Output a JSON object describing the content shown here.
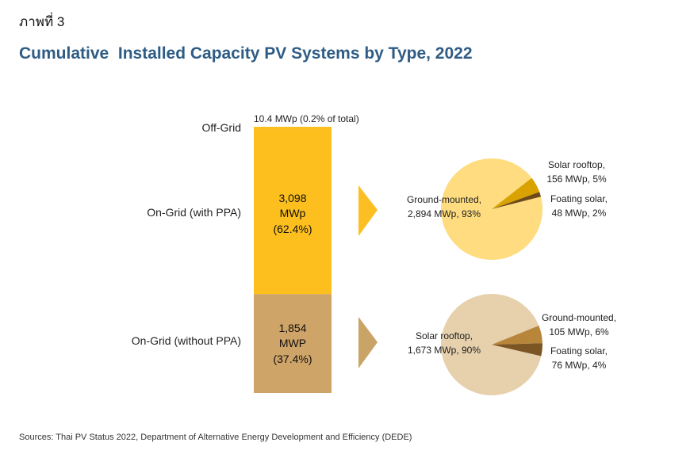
{
  "header": {
    "figure_label": "ภาพที่ 3",
    "title": "Cumulative  Installed Capacity PV Systems by Type, 2022"
  },
  "footer": {
    "sources": "Sources: Thai PV Status 2022, Department of Alternative Energy Development and Efficiency (DEDE)"
  },
  "colors": {
    "title": "#2e5c85",
    "offgrid": "#fbbf24",
    "ppa_bar": "#fcbf1e",
    "noppa_bar": "#cfa468",
    "ppa_arrow": "#fbbf24",
    "noppa_arrow": "#c9a466",
    "ppa_pie_main": "#fedc7f",
    "ppa_pie_rooftop": "#d9a200",
    "ppa_pie_floating": "#6e4a1a",
    "noppa_pie_main": "#e7d0ac",
    "noppa_pie_ground": "#b8863a",
    "noppa_pie_floating": "#7b5524"
  },
  "chart_data": [
    {
      "type": "bar",
      "title": "Cumulative  Installed Capacity PV Systems by Type, 2022",
      "stacked": true,
      "unit": "MWp",
      "categories": [
        "Off-Grid",
        "On-Grid (with PPA)",
        "On-Grid (without PPA)"
      ],
      "values": [
        10.4,
        3098,
        1854
      ],
      "shares_percent": [
        0.2,
        62.4,
        37.4
      ],
      "data_labels": [
        "10.4 MWp  (0.2% of total)",
        [
          "3,098",
          "MWp",
          "(62.4%)"
        ],
        [
          "1,854",
          "MWP",
          "(37.4%)"
        ]
      ]
    },
    {
      "type": "pie",
      "title": "On-Grid (with PPA)",
      "slices": [
        {
          "name": "Ground-mounted",
          "value": 2894,
          "percent": 93,
          "label": [
            "Ground-mounted,",
            "2,894 MWp, 93%"
          ]
        },
        {
          "name": "Solar rooftop",
          "value": 156,
          "percent": 5,
          "label": [
            "Solar rooftop,",
            "156 MWp, 5%"
          ]
        },
        {
          "name": "Foating solar",
          "value": 48,
          "percent": 2,
          "label": [
            "Foating solar,",
            "48 MWp, 2%"
          ]
        }
      ]
    },
    {
      "type": "pie",
      "title": "On-Grid (without PPA)",
      "slices": [
        {
          "name": "Solar rooftop",
          "value": 1673,
          "percent": 90,
          "label": [
            "Solar rooftop,",
            "1,673 MWp, 90%"
          ]
        },
        {
          "name": "Ground-mounted",
          "value": 105,
          "percent": 6,
          "label": [
            "Ground-mounted,",
            "105 MWp, 6%"
          ]
        },
        {
          "name": "Foating solar",
          "value": 76,
          "percent": 4,
          "label": [
            "Foating solar,",
            "76 MWp, 4%"
          ]
        }
      ]
    }
  ]
}
